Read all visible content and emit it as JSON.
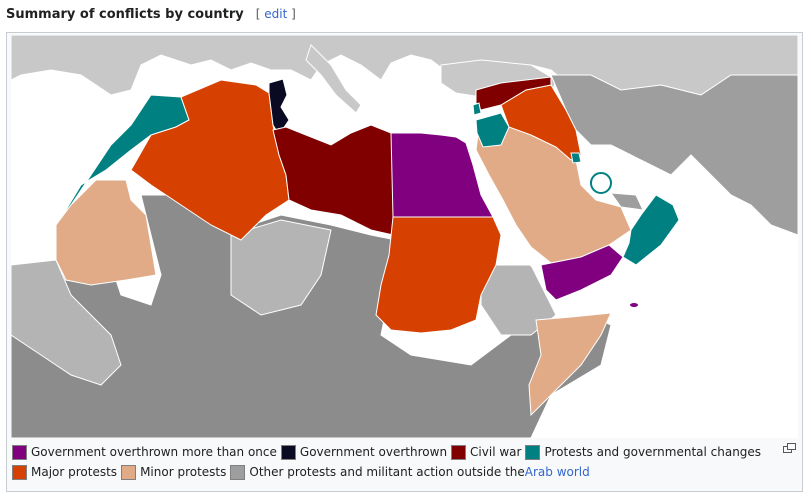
{
  "heading": {
    "title": "Summary of conflicts by country",
    "edit_open": "[",
    "edit_label": "edit",
    "edit_close": "]"
  },
  "legend": {
    "rows": [
      [
        {
          "label": "Government overthrown more than once",
          "color": "#800080"
        },
        {
          "label": "Government overthrown",
          "color": "#0a0a23"
        },
        {
          "label": "Civil war",
          "color": "#800000"
        },
        {
          "label": "Protests and governmental changes",
          "color": "#008080"
        }
      ],
      [
        {
          "label": "Major protests",
          "color": "#d64000"
        },
        {
          "label": "Minor protests",
          "color": "#e0ab86"
        },
        {
          "label": "Other protests and militant action outside the",
          "color": "#9e9e9e",
          "link": "Arab world"
        }
      ]
    ]
  },
  "colors": {
    "sea": "#ffffff",
    "land": "#c8c8c8",
    "land_dark": "#8c8c8c",
    "border": "#ffffff"
  },
  "icons": {
    "enlarge": "enlarge-icon",
    "highlight": "bahrain-highlight-circle"
  }
}
